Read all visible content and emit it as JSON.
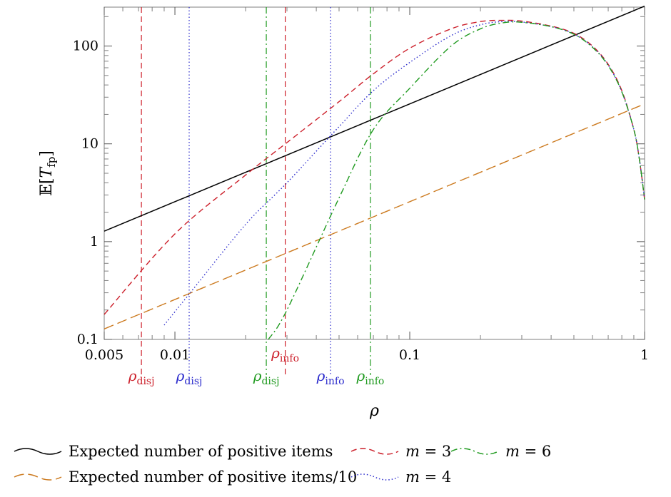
{
  "chart_data": {
    "type": "line",
    "xlabel": "ρ",
    "ylabel": "𝔼[T_fp]",
    "xscale": "log",
    "yscale": "log",
    "xlim": [
      0.005,
      1
    ],
    "ylim": [
      0.1,
      250
    ],
    "grid": false,
    "legend_placement": "bottom",
    "x_ticks": [
      {
        "value": 0.005,
        "label": "0.005"
      },
      {
        "value": 0.01,
        "label": "0.01"
      },
      {
        "value": 0.1,
        "label": "0.1"
      },
      {
        "value": 1,
        "label": "1"
      }
    ],
    "y_ticks": [
      {
        "value": 0.1,
        "label": "0.1"
      },
      {
        "value": 1,
        "label": "1"
      },
      {
        "value": 10,
        "label": "10"
      },
      {
        "value": 100,
        "label": "100"
      }
    ],
    "series": [
      {
        "name": "Expected number of positive items",
        "color": "#000000",
        "dash": "solid",
        "x": [
          0.005,
          1
        ],
        "y": [
          1.28,
          256
        ]
      },
      {
        "name": "Expected number of positive items/10",
        "color": "#cc7a1f",
        "dash": "long-dash",
        "x": [
          0.005,
          1
        ],
        "y": [
          0.128,
          25.6
        ]
      },
      {
        "name": "m = 3",
        "color": "#cc1f2a",
        "dash": "dash",
        "x": [
          0.005,
          0.01,
          0.02,
          0.03,
          0.05,
          0.07,
          0.1,
          0.15,
          0.2,
          0.25,
          0.3,
          0.4,
          0.5,
          0.6,
          0.7,
          0.8,
          0.9,
          0.95,
          1.0
        ],
        "y": [
          0.18,
          1.2,
          4.8,
          10.3,
          27,
          52,
          95,
          150,
          178,
          183,
          180,
          160,
          135,
          100,
          65,
          35,
          14,
          7,
          2.7
        ]
      },
      {
        "name": "m = 4",
        "color": "#2a2acc",
        "dash": "dotted",
        "x": [
          0.009,
          0.012,
          0.02,
          0.03,
          0.05,
          0.07,
          0.1,
          0.15,
          0.2,
          0.25,
          0.3,
          0.4,
          0.5,
          0.6,
          0.7,
          0.8,
          0.9,
          0.95,
          1.0
        ],
        "y": [
          0.14,
          0.33,
          1.5,
          4.0,
          15,
          35,
          68,
          128,
          165,
          178,
          176,
          158,
          133,
          98,
          64,
          34,
          14,
          7,
          2.7
        ]
      },
      {
        "name": "m = 6",
        "color": "#1f9a1f",
        "dash": "dash-dot",
        "x": [
          0.025,
          0.03,
          0.05,
          0.07,
          0.1,
          0.15,
          0.2,
          0.25,
          0.3,
          0.4,
          0.5,
          0.6,
          0.7,
          0.8,
          0.9,
          0.95,
          1.0
        ],
        "y": [
          0.1,
          0.2,
          2.8,
          14,
          37,
          100,
          150,
          173,
          175,
          158,
          132,
          97,
          63,
          34,
          14,
          7,
          2.7
        ]
      }
    ],
    "vertical_markers": [
      {
        "x": 0.0072,
        "label": "ρdisj",
        "label_main": "ρ",
        "label_sub": "disj",
        "color": "#cc1f2a",
        "dash": "dash",
        "row": 0
      },
      {
        "x": 0.0115,
        "label": "ρdisj",
        "label_main": "ρ",
        "label_sub": "disj",
        "color": "#2a2acc",
        "dash": "dotted",
        "row": 0
      },
      {
        "x": 0.0245,
        "label": "ρdisj",
        "label_main": "ρ",
        "label_sub": "disj",
        "color": "#1f9a1f",
        "dash": "dash-dot",
        "row": 0
      },
      {
        "x": 0.0295,
        "label": "ρinfo",
        "label_main": "ρ",
        "label_sub": "info",
        "color": "#cc1f2a",
        "dash": "dash",
        "row": -1
      },
      {
        "x": 0.046,
        "label": "ρinfo",
        "label_main": "ρ",
        "label_sub": "info",
        "color": "#2a2acc",
        "dash": "dotted",
        "row": 0
      },
      {
        "x": 0.068,
        "label": "ρinfo",
        "label_main": "ρ",
        "label_sub": "info",
        "color": "#1f9a1f",
        "dash": "dash-dot",
        "row": 0
      }
    ],
    "legend": [
      {
        "label": "Expected number of positive items",
        "series": 0
      },
      {
        "label": "m = 3",
        "series": 2
      },
      {
        "label": "m = 6",
        "series": 4
      },
      {
        "label": "Expected number of positive items/10",
        "series": 1
      },
      {
        "label": "m = 4",
        "series": 3
      }
    ]
  }
}
